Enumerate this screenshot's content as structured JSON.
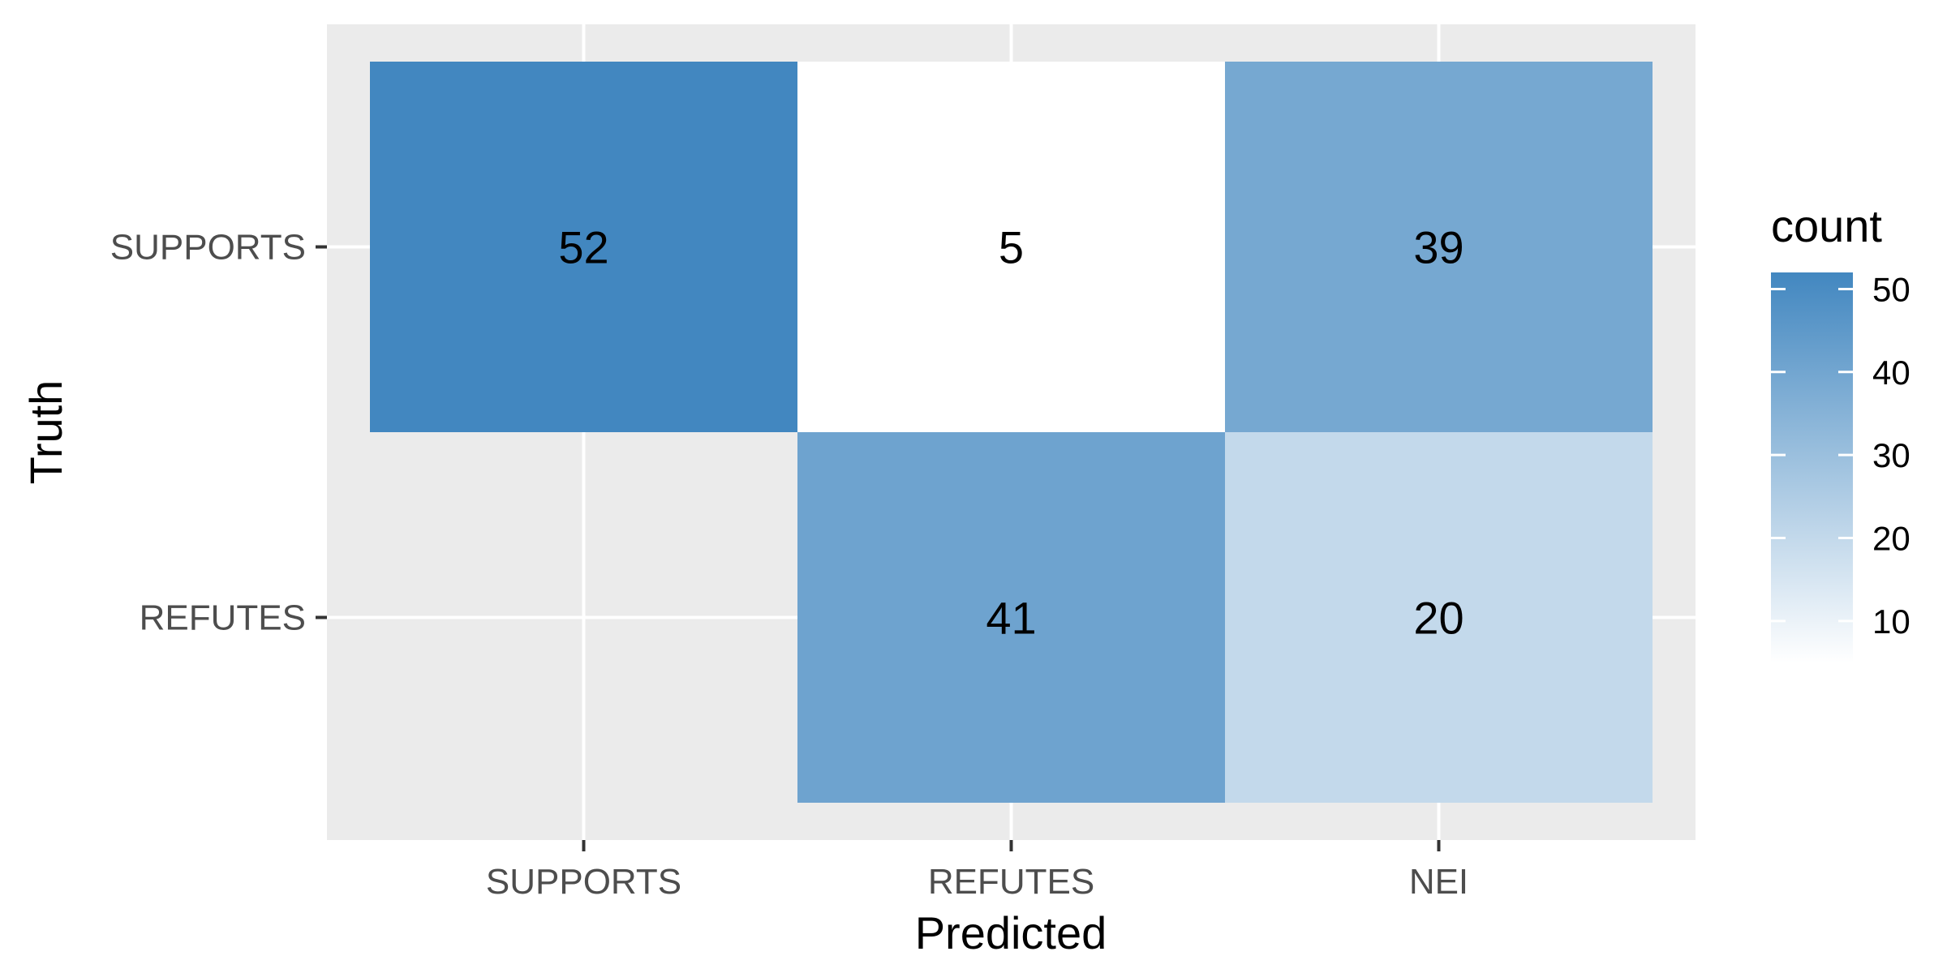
{
  "chart_data": {
    "type": "heatmap",
    "xlabel": "Predicted",
    "ylabel": "Truth",
    "x_categories": [
      "SUPPORTS",
      "REFUTES",
      "NEI"
    ],
    "y_categories": [
      "SUPPORTS",
      "REFUTES"
    ],
    "cells": [
      {
        "x": "SUPPORTS",
        "y": "SUPPORTS",
        "value": 52
      },
      {
        "x": "REFUTES",
        "y": "SUPPORTS",
        "value": 5
      },
      {
        "x": "NEI",
        "y": "SUPPORTS",
        "value": 39
      },
      {
        "x": "REFUTES",
        "y": "REFUTES",
        "value": 41
      },
      {
        "x": "NEI",
        "y": "REFUTES",
        "value": 20
      }
    ],
    "legend": {
      "title": "count",
      "breaks": [
        10,
        20,
        30,
        40,
        50
      ],
      "min": 5,
      "max": 52,
      "low_color": "#ffffff",
      "high_color": "#4287c0",
      "placement": "right"
    },
    "grid": true,
    "panel_background": "#ebebeb"
  }
}
